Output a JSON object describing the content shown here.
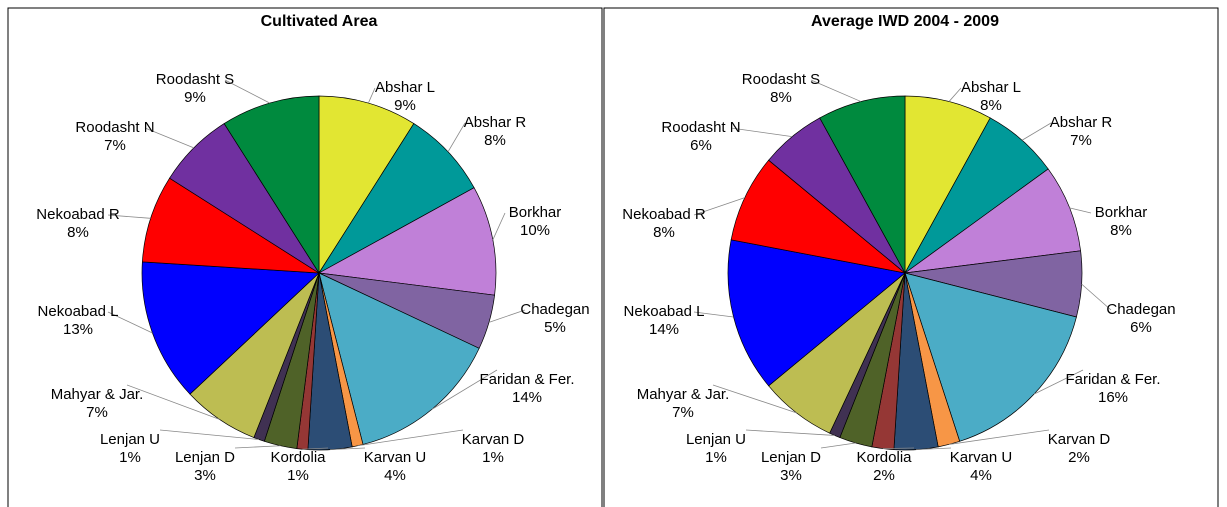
{
  "chart_data": [
    {
      "type": "pie",
      "title": "Cultivated Area",
      "categories": [
        "Abshar L",
        "Abshar R",
        "Borkhar",
        "Chadegan",
        "Faridan & Fer.",
        "Karvan D",
        "Karvan U",
        "Kordolia",
        "Lenjan D",
        "Lenjan U",
        "Mahyar & Jar.",
        "Nekoabad L",
        "Nekoabad R",
        "Roodasht N",
        "Roodasht S"
      ],
      "values": [
        9,
        8,
        10,
        5,
        14,
        1,
        4,
        1,
        3,
        1,
        7,
        13,
        8,
        7,
        9
      ],
      "value_labels": [
        "9%",
        "8%",
        "10%",
        "5%",
        "14%",
        "1%",
        "4%",
        "1%",
        "3%",
        "1%",
        "7%",
        "13%",
        "8%",
        "7%",
        "9%"
      ],
      "colors": [
        "#e2e632",
        "#009999",
        "#c080d8",
        "#8064a2",
        "#4bacc6",
        "#f79646",
        "#2c4d75",
        "#953735",
        "#4f6228",
        "#403152",
        "#bdbd52",
        "#0000ff",
        "#ff0000",
        "#7030a0",
        "#008a3e"
      ]
    },
    {
      "type": "pie",
      "title": "Average IWD 2004 - 2009",
      "categories": [
        "Abshar L",
        "Abshar R",
        "Borkhar",
        "Chadegan",
        "Faridan & Fer.",
        "Karvan D",
        "Karvan U",
        "Kordolia",
        "Lenjan D",
        "Lenjan U",
        "Mahyar & Jar.",
        "Nekoabad L",
        "Nekoabad R",
        "Roodasht N",
        "Roodasht S"
      ],
      "values": [
        8,
        7,
        8,
        6,
        16,
        2,
        4,
        2,
        3,
        1,
        7,
        14,
        8,
        6,
        8
      ],
      "value_labels": [
        "8%",
        "7%",
        "8%",
        "6%",
        "16%",
        "2%",
        "4%",
        "2%",
        "3%",
        "1%",
        "7%",
        "14%",
        "8%",
        "6%",
        "8%"
      ],
      "colors": [
        "#e2e632",
        "#009999",
        "#c080d8",
        "#8064a2",
        "#4bacc6",
        "#f79646",
        "#2c4d75",
        "#953735",
        "#4f6228",
        "#403152",
        "#bdbd52",
        "#0000ff",
        "#ff0000",
        "#7030a0",
        "#008a3e"
      ]
    }
  ]
}
